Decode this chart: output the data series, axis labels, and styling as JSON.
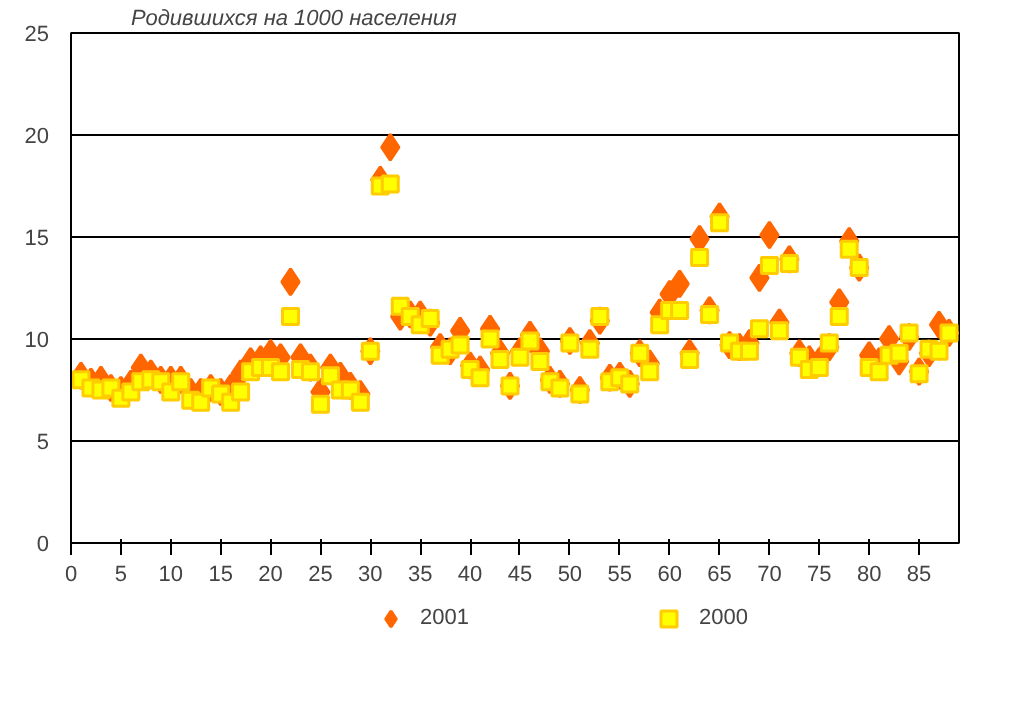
{
  "chart_data": {
    "type": "scatter",
    "title": "Родившихся на 1000 населения",
    "x": [
      1,
      2,
      3,
      4,
      5,
      6,
      7,
      8,
      9,
      10,
      11,
      12,
      13,
      14,
      15,
      16,
      17,
      18,
      19,
      20,
      21,
      22,
      23,
      24,
      25,
      26,
      27,
      28,
      29,
      30,
      31,
      32,
      33,
      34,
      35,
      36,
      37,
      38,
      39,
      40,
      41,
      42,
      43,
      44,
      45,
      46,
      47,
      48,
      49,
      50,
      51,
      52,
      53,
      54,
      55,
      56,
      57,
      58,
      59,
      60,
      61,
      62,
      63,
      64,
      65,
      66,
      67,
      68,
      69,
      70,
      71,
      72,
      73,
      74,
      75,
      76,
      77,
      78,
      79,
      80,
      81,
      82,
      83,
      84,
      85,
      86,
      87,
      88
    ],
    "series": [
      {
        "name": "2001",
        "color": "#ff6600",
        "marker": "diamond",
        "values": [
          8.2,
          7.9,
          8.0,
          7.6,
          7.5,
          7.8,
          8.6,
          8.3,
          8.0,
          8.0,
          8.0,
          7.4,
          7.4,
          7.6,
          7.4,
          7.6,
          8.3,
          8.9,
          9.0,
          9.3,
          9.1,
          12.8,
          9.1,
          8.6,
          7.4,
          8.6,
          8.2,
          7.7,
          7.3,
          9.4,
          17.8,
          19.4,
          11.1,
          11.2,
          11.2,
          10.8,
          9.6,
          9.4,
          10.4,
          8.7,
          8.5,
          10.5,
          9.3,
          7.7,
          9.4,
          10.2,
          9.4,
          8.0,
          7.8,
          9.9,
          7.5,
          9.8,
          10.9,
          8.1,
          8.2,
          7.8,
          9.3,
          8.8,
          11.3,
          12.2,
          12.7,
          9.3,
          14.9,
          11.4,
          16.0,
          9.7,
          9.6,
          9.8,
          13.0,
          15.1,
          10.8,
          13.9,
          9.3,
          9.0,
          8.9,
          9.6,
          11.8,
          14.8,
          13.5,
          9.2,
          8.9,
          10.0,
          8.9,
          10.1,
          8.4,
          9.3,
          10.7,
          10.3
        ]
      },
      {
        "name": "2000",
        "color": "#ffff00",
        "marker": "square",
        "values": [
          8.0,
          7.6,
          7.5,
          7.6,
          7.1,
          7.4,
          7.9,
          8.0,
          7.9,
          7.4,
          7.9,
          7.0,
          6.9,
          7.6,
          7.3,
          6.9,
          7.4,
          8.4,
          8.6,
          8.6,
          8.4,
          11.1,
          8.5,
          8.4,
          6.8,
          8.2,
          7.5,
          7.5,
          6.9,
          9.4,
          17.5,
          17.6,
          11.6,
          11.1,
          10.7,
          11.0,
          9.2,
          9.5,
          9.7,
          8.5,
          8.1,
          10.0,
          9.0,
          7.7,
          9.1,
          9.9,
          8.9,
          7.9,
          7.6,
          9.8,
          7.3,
          9.5,
          11.1,
          7.9,
          8.1,
          7.8,
          9.3,
          8.4,
          10.7,
          11.4,
          11.4,
          9.0,
          14.0,
          11.2,
          15.7,
          9.8,
          9.4,
          9.4,
          10.5,
          13.6,
          10.4,
          13.7,
          9.1,
          8.5,
          8.6,
          9.8,
          11.1,
          14.4,
          13.5,
          8.6,
          8.4,
          9.2,
          9.3,
          10.3,
          8.3,
          9.5,
          9.4,
          10.3
        ]
      }
    ],
    "xlim": [
      0,
      89
    ],
    "ylim": [
      0,
      25
    ],
    "xticks": [
      0,
      5,
      10,
      15,
      20,
      25,
      30,
      35,
      40,
      45,
      50,
      55,
      60,
      65,
      70,
      75,
      80,
      85
    ],
    "yticks": [
      0,
      5,
      10,
      15,
      20,
      25
    ],
    "grid": "y",
    "legend": "bottom"
  }
}
